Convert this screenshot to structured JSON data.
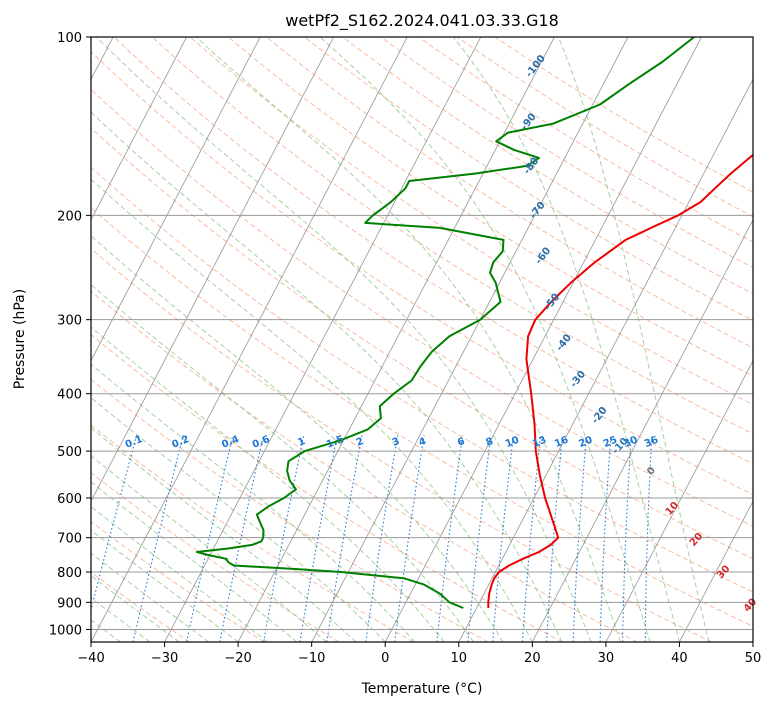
{
  "chart_data": {
    "type": "line",
    "title": "wetPf2_S162.2024.041.03.33.G18",
    "xlabel": "Temperature (°C)",
    "ylabel": "Pressure (hPa)",
    "xlim": [
      -40,
      50
    ],
    "ylim": [
      1050,
      100
    ],
    "y_scale": "log",
    "grid": true,
    "x_ticks": [
      "−40",
      "−30",
      "−20",
      "−10",
      "0",
      "10",
      "20",
      "30",
      "40",
      "50"
    ],
    "y_ticks": [
      {
        "p": 100,
        "label": "100"
      },
      {
        "p": 200,
        "label": "200"
      },
      {
        "p": 300,
        "label": "300"
      },
      {
        "p": 400,
        "label": "400"
      },
      {
        "p": 500,
        "label": "500"
      },
      {
        "p": 600,
        "label": "600"
      },
      {
        "p": 700,
        "label": "700"
      },
      {
        "p": 800,
        "label": "800"
      },
      {
        "p": 900,
        "label": "900"
      },
      {
        "p": 1000,
        "label": "1000"
      }
    ],
    "series": [
      {
        "color": "#ee0000",
        "p": [
          920,
          900,
          870,
          840,
          820,
          800,
          780,
          760,
          740,
          720,
          700,
          650,
          600,
          550,
          500,
          450,
          400,
          350,
          320,
          300,
          280,
          260,
          240,
          220,
          210,
          200,
          190,
          180,
          170,
          160,
          150,
          140,
          130,
          120,
          110,
          100
        ],
        "t": [
          11.6,
          11.2,
          10.7,
          10.4,
          10.3,
          10.5,
          11.4,
          12.8,
          14.5,
          15.6,
          16.1,
          13.9,
          11.5,
          9.2,
          6.9,
          4.8,
          2.2,
          -0.9,
          -2.3,
          -2.5,
          -1.6,
          -0.3,
          1.5,
          4.1,
          6.7,
          9.5,
          11.6,
          12.6,
          13.7,
          15.1,
          16.7,
          18.1,
          19.1,
          19.7,
          20.5,
          21.6
        ]
      },
      {
        "color": "#008000",
        "p": [
          920,
          900,
          870,
          840,
          820,
          800,
          790,
          780,
          775,
          770,
          760,
          750,
          740,
          730,
          720,
          710,
          700,
          680,
          660,
          640,
          620,
          600,
          580,
          560,
          540,
          520,
          500,
          480,
          460,
          440,
          420,
          400,
          380,
          360,
          340,
          320,
          300,
          280,
          260,
          250,
          240,
          230,
          220,
          210,
          206,
          200,
          190,
          180,
          175,
          170,
          165,
          160,
          155,
          150,
          145,
          140,
          130,
          120,
          110,
          100
        ],
        "t": [
          8.2,
          5.9,
          4.0,
          1.2,
          -1.9,
          -11.0,
          -18.0,
          -26.0,
          -26.5,
          -27.0,
          -27.5,
          -30.0,
          -32.0,
          -28.0,
          -25.0,
          -24.0,
          -24.0,
          -24.5,
          -25.5,
          -26.5,
          -25.5,
          -24.0,
          -23.0,
          -24.5,
          -25.5,
          -26.0,
          -24.5,
          -20.5,
          -17.5,
          -16.5,
          -17.5,
          -16.5,
          -15.0,
          -14.8,
          -14.3,
          -13.0,
          -10.0,
          -8.5,
          -10.5,
          -12.0,
          -12.3,
          -11.8,
          -12.5,
          -22.0,
          -32.5,
          -32.0,
          -30.5,
          -29.5,
          -29.5,
          -21.0,
          -14.5,
          -13.5,
          -17.5,
          -20.5,
          -19.5,
          -14.0,
          -9.0,
          -6.5,
          -3.5,
          -1.0
        ]
      }
    ],
    "dry_adiabat_labels": [
      {
        "label": "-100",
        "p": 112,
        "t": -20.5
      },
      {
        "label": "-90",
        "p": 139,
        "t": -17.5
      },
      {
        "label": "-80",
        "p": 165,
        "t": -14.0
      },
      {
        "label": "-70",
        "p": 196,
        "t": -10.0
      },
      {
        "label": "-60",
        "p": 234,
        "t": -6.0
      },
      {
        "label": "-50",
        "p": 280,
        "t": -1.5
      },
      {
        "label": "-40",
        "p": 328,
        "t": 3.0
      },
      {
        "label": "-30",
        "p": 378,
        "t": 7.5
      },
      {
        "label": "-20",
        "p": 435,
        "t": 13.0
      }
    ],
    "mixing_ratio_labels": [
      "0.1",
      "0.2",
      "0.4",
      "0.6",
      "1",
      "1.5",
      "2",
      "3",
      "4",
      "6",
      "8",
      "10",
      "13",
      "16",
      "20",
      "25",
      "30",
      "36"
    ],
    "mixing_ratio_values": [
      0.1,
      0.2,
      0.4,
      0.6,
      1,
      1.5,
      2,
      3,
      4,
      6,
      8,
      10,
      13,
      16,
      20,
      25,
      30,
      36
    ],
    "mixing_ratio_label_p": 490,
    "moist_adiabat_labels": [
      {
        "label": "-10",
        "p": 490,
        "t": 18.0,
        "color": "#2a7ab8"
      },
      {
        "label": "0",
        "p": 540,
        "t": 24.0,
        "color": "#777777"
      },
      {
        "label": "10",
        "p": 625,
        "t": 29.5,
        "color": "#d62728"
      },
      {
        "label": "20",
        "p": 705,
        "t": 35.0,
        "color": "#d62728"
      },
      {
        "label": "30",
        "p": 800,
        "t": 41.0,
        "color": "#d62728"
      },
      {
        "label": "40",
        "p": 910,
        "t": 47.0,
        "color": "#d62728"
      }
    ],
    "colors": {
      "temperature": "#ee0000",
      "dewpoint": "#008000",
      "dry_adiabat": "#f4a582",
      "moist_adiabat": "#7fbf7b",
      "mixing_ratio": "#1f78d4",
      "dry_adiabat_label": "#2a6fa8",
      "isotherm": "#555555"
    }
  }
}
